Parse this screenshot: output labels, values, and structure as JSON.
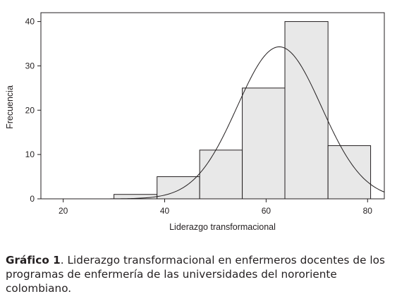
{
  "chart_data": {
    "type": "bar",
    "subtype": "histogram",
    "xlabel": "Liderazgo transformacional",
    "ylabel": "Frecuencia",
    "xlim": [
      15.6,
      83.3
    ],
    "ylim": [
      0,
      42
    ],
    "xticks": [
      20,
      40,
      60,
      80
    ],
    "yticks": [
      0,
      10,
      20,
      30,
      40
    ],
    "bins": [
      {
        "x0": 30.0,
        "x1": 38.5,
        "value": 1
      },
      {
        "x0": 38.5,
        "x1": 46.9,
        "value": 5
      },
      {
        "x0": 46.9,
        "x1": 55.3,
        "value": 11
      },
      {
        "x0": 55.3,
        "x1": 63.7,
        "value": 25
      },
      {
        "x0": 63.7,
        "x1": 72.2,
        "value": 40
      },
      {
        "x0": 72.2,
        "x1": 80.6,
        "value": 12
      }
    ],
    "normal_curve": {
      "mean": 62.6,
      "sd": 8.3,
      "peak": 34.3
    },
    "grid": false,
    "legend": "none",
    "colors": {
      "bar_fill": "#e8e8e8",
      "stroke": "#231f20"
    }
  },
  "caption": {
    "label": "Gráfico 1",
    "text": ". Liderazgo transformacional en enfermeros docentes de los programas de enfermería de las universidades del nororiente colombiano."
  }
}
